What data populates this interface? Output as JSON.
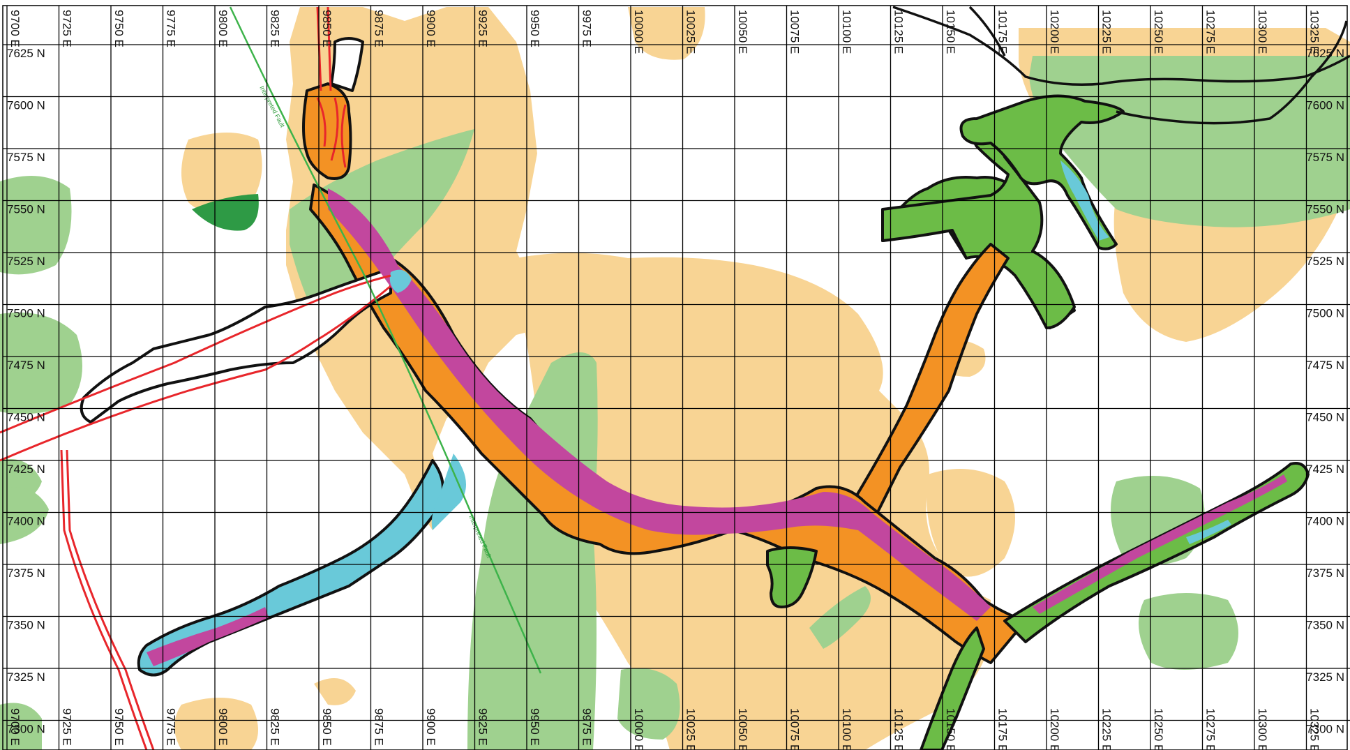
{
  "map": {
    "grid": {
      "eastings": [
        9700,
        9725,
        9750,
        9775,
        9800,
        9825,
        9850,
        9875,
        9900,
        9925,
        9950,
        9975,
        10000,
        10025,
        10050,
        10075,
        10100,
        10125,
        10150,
        10175,
        10200,
        10225,
        10250,
        10275,
        10300,
        10325
      ],
      "northings": [
        7625,
        7600,
        7575,
        7550,
        7525,
        7500,
        7475,
        7450,
        7425,
        7400,
        7375,
        7350,
        7325,
        7300
      ],
      "easting_suffix": " E",
      "northing_suffix": " N"
    },
    "fault_labels": [
      "Interpreted Fault",
      "Interpreted Fault"
    ],
    "colors": {
      "tan": "#f8d494",
      "light_green": "#9fd18f",
      "green": "#6cbc47",
      "dark_green": "#2e9a45",
      "orange": "#f39224",
      "magenta": "#c2479e",
      "cyan": "#69c9d9",
      "red": "#e8262b",
      "fault_green": "#3db34a",
      "outline": "#111111"
    }
  }
}
